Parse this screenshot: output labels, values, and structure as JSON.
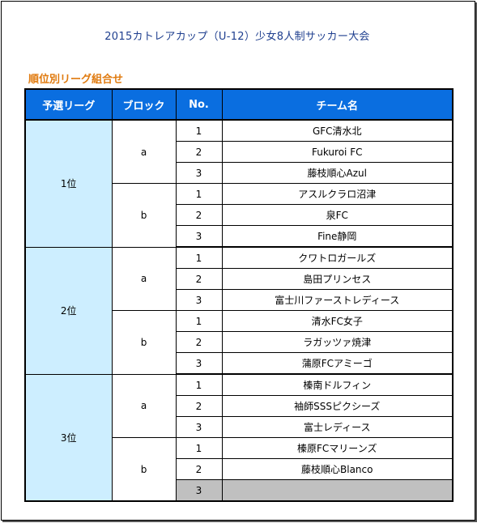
{
  "title": "2015カトレアカップ（U-12）少女8人制サッカー大会",
  "subtitle": "順位別リーグ組合せ",
  "headers": {
    "league": "予選リーグ",
    "block": "ブロック",
    "no": "No.",
    "team": "チーム名"
  },
  "groups": [
    {
      "rank": "1位",
      "blocks": [
        {
          "name": "a",
          "teams": [
            {
              "no": "1",
              "name": "GFC清水北"
            },
            {
              "no": "2",
              "name": "Fukuroi FC"
            },
            {
              "no": "3",
              "name": "藤枝順心Azul"
            }
          ]
        },
        {
          "name": "b",
          "teams": [
            {
              "no": "1",
              "name": "アスルクラロ沼津"
            },
            {
              "no": "2",
              "name": "泉FC"
            },
            {
              "no": "3",
              "name": "Fine静岡"
            }
          ]
        }
      ]
    },
    {
      "rank": "2位",
      "blocks": [
        {
          "name": "a",
          "teams": [
            {
              "no": "1",
              "name": "クワトロガールズ"
            },
            {
              "no": "2",
              "name": "島田プリンセス"
            },
            {
              "no": "3",
              "name": "富士川ファーストレディース"
            }
          ]
        },
        {
          "name": "b",
          "teams": [
            {
              "no": "1",
              "name": "清水FC女子"
            },
            {
              "no": "2",
              "name": "ラガッツァ焼津"
            },
            {
              "no": "3",
              "name": "蒲原FCアミーゴ"
            }
          ]
        }
      ]
    },
    {
      "rank": "3位",
      "blocks": [
        {
          "name": "a",
          "teams": [
            {
              "no": "1",
              "name": "榛南ドルフィン"
            },
            {
              "no": "2",
              "name": "袖師SSSピクシーズ"
            },
            {
              "no": "3",
              "name": "富士レディース"
            }
          ]
        },
        {
          "name": "b",
          "teams": [
            {
              "no": "1",
              "name": "榛原FCマリーンズ"
            },
            {
              "no": "2",
              "name": "藤枝順心Blanco"
            },
            {
              "no": "3",
              "name": ""
            }
          ]
        }
      ]
    }
  ],
  "colors": {
    "header_bg": "#0a6ee0",
    "rank_bg": "#cdeeff",
    "title": "#1f3f8f",
    "subtitle": "#e07b10",
    "empty_cell": "#c0c0c0"
  }
}
